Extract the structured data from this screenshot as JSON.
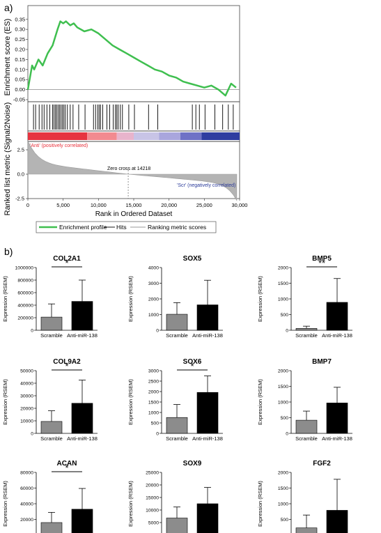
{
  "panel_a": {
    "label": "a)",
    "es_ylabel": "Enrichment score (ES)",
    "metric_ylabel": "Ranked list metric (Signal2Noise)",
    "xlabel": "Rank in Ordered Dataset",
    "pos_label": "'Anti' (positively correlated)",
    "neg_label": "'Scr' (negatively correlated)",
    "zero_cross_label": "Zero cross at 14218",
    "legend": [
      "Enrichment profile",
      "Hits",
      "Ranking metric scores"
    ],
    "colors": {
      "profile": "#3fbf4f",
      "pos": "#e8303a",
      "neg": "#2a3a9a",
      "metric": "#9a9a9a"
    }
  },
  "panel_b": {
    "label": "b)"
  },
  "chart_data": [
    {
      "type": "line",
      "title": "",
      "xlabel": "Rank in Ordered Dataset",
      "ylabel": "Enrichment score (ES)",
      "xlim": [
        0,
        30000
      ],
      "ylim": [
        -0.05,
        0.37
      ],
      "x_ticks": [
        "0",
        "5,000",
        "10,000",
        "15,000",
        "20,000",
        "25,000",
        "30,000"
      ],
      "y_ticks": [
        "0.35",
        "0.30",
        "0.25",
        "0.20",
        "0.15",
        "0.10",
        "0.05",
        "0.00",
        "-0.05"
      ],
      "series": [
        {
          "name": "Enrichment profile",
          "x": [
            0,
            300,
            600,
            900,
            1500,
            2100,
            2800,
            3500,
            4200,
            4600,
            5000,
            5400,
            6000,
            6500,
            7000,
            8000,
            9000,
            10000,
            11000,
            12000,
            13000,
            14000,
            15000,
            16000,
            17000,
            18000,
            19000,
            20000,
            21000,
            22000,
            23000,
            24000,
            25000,
            26000,
            27000,
            28000,
            28800,
            29500
          ],
          "y": [
            0.0,
            0.06,
            0.12,
            0.1,
            0.15,
            0.12,
            0.18,
            0.22,
            0.3,
            0.34,
            0.33,
            0.34,
            0.32,
            0.33,
            0.31,
            0.29,
            0.3,
            0.28,
            0.25,
            0.22,
            0.2,
            0.18,
            0.16,
            0.14,
            0.12,
            0.1,
            0.09,
            0.07,
            0.06,
            0.04,
            0.03,
            0.02,
            0.01,
            0.02,
            0.0,
            -0.03,
            0.03,
            0.01
          ]
        }
      ],
      "hits": [
        800,
        1100,
        1600,
        2000,
        2300,
        2700,
        3100,
        3500,
        3700,
        3900,
        4100,
        4300,
        4500,
        4700,
        4900,
        5100,
        5300,
        5600,
        6000,
        6400,
        7200,
        8100,
        9300,
        9600,
        9900,
        10100,
        10300,
        10600,
        11200,
        11600,
        12100,
        12400,
        12600,
        12800,
        13100,
        13400,
        14300,
        15100,
        17100,
        18400,
        23300,
        23800,
        24300,
        25100,
        26500,
        27600,
        28400,
        29100
      ],
      "metric_ticks": [
        "2.5",
        "0.0",
        "-2.5"
      ],
      "zero_cross": 14218
    },
    {
      "type": "bar",
      "title": "COL2A1",
      "ylabel": "Expression (RSEM)",
      "categories": [
        "Scramble",
        "Anti-miR-138"
      ],
      "values": [
        210000,
        460000
      ],
      "errors": [
        210000,
        340000
      ],
      "ylim": [
        0,
        1000000
      ],
      "y_ticks": [
        "0",
        "200000",
        "400000",
        "600000",
        "800000",
        "1000000"
      ],
      "significance": "*"
    },
    {
      "type": "bar",
      "title": "SOX5",
      "ylabel": "Expression (RSEM)",
      "categories": [
        "Scramble",
        "Anti-miR-138"
      ],
      "values": [
        1020,
        1620
      ],
      "errors": [
        740,
        1570
      ],
      "ylim": [
        0,
        4000
      ],
      "y_ticks": [
        "0",
        "1000",
        "2000",
        "3000",
        "4000"
      ],
      "significance": ""
    },
    {
      "type": "bar",
      "title": "BMP5",
      "ylabel": "Expression (RSEM)",
      "categories": [
        "Scramble",
        "Anti-miR-138"
      ],
      "values": [
        60,
        890
      ],
      "errors": [
        70,
        760
      ],
      "ylim": [
        0,
        2000
      ],
      "y_ticks": [
        "0",
        "500",
        "1000",
        "1500",
        "2000"
      ],
      "significance": "**"
    },
    {
      "type": "bar",
      "title": "COL9A2",
      "ylabel": "Expression (RSEM)",
      "categories": [
        "Scramble",
        "Anti-miR-138"
      ],
      "values": [
        9500,
        24000
      ],
      "errors": [
        8500,
        18500
      ],
      "ylim": [
        0,
        50000
      ],
      "y_ticks": [
        "0",
        "10000",
        "20000",
        "30000",
        "40000",
        "50000"
      ],
      "significance": "*"
    },
    {
      "type": "bar",
      "title": "SOX6",
      "ylabel": "Expression (RSEM)",
      "categories": [
        "Scramble",
        "Anti-miR-138"
      ],
      "values": [
        760,
        1960
      ],
      "errors": [
        620,
        790
      ],
      "ylim": [
        0,
        3000
      ],
      "y_ticks": [
        "0",
        "500",
        "1000",
        "1500",
        "2000",
        "2500",
        "3000"
      ],
      "significance": "*"
    },
    {
      "type": "bar",
      "title": "BMP7",
      "ylabel": "Expression (RSEM)",
      "categories": [
        "Scramble",
        "Anti-miR-138"
      ],
      "values": [
        420,
        970
      ],
      "errors": [
        290,
        500
      ],
      "ylim": [
        0,
        2000
      ],
      "y_ticks": [
        "0",
        "500",
        "1000",
        "1500",
        "2000"
      ],
      "significance": ""
    },
    {
      "type": "bar",
      "title": "ACAN",
      "ylabel": "Expression (RSEM)",
      "categories": [
        "Scramble",
        "Anti-miR-138"
      ],
      "values": [
        16000,
        33000
      ],
      "errors": [
        13000,
        26500
      ],
      "ylim": [
        0,
        80000
      ],
      "y_ticks": [
        "0",
        "20000",
        "40000",
        "60000",
        "80000"
      ],
      "significance": "*"
    },
    {
      "type": "bar",
      "title": "SOX9",
      "ylabel": "Expression (RSEM)",
      "categories": [
        "Scramble",
        "Anti-miR-138"
      ],
      "values": [
        6800,
        12500
      ],
      "errors": [
        4400,
        6500
      ],
      "ylim": [
        0,
        25000
      ],
      "y_ticks": [
        "0",
        "5000",
        "10000",
        "15000",
        "20000",
        "25000"
      ],
      "significance": ""
    },
    {
      "type": "bar",
      "title": "FGF2",
      "ylabel": "Expression (RSEM)",
      "categories": [
        "Scramble",
        "Anti-miR-138"
      ],
      "values": [
        230,
        790
      ],
      "errors": [
        410,
        990
      ],
      "ylim": [
        0,
        2000
      ],
      "y_ticks": [
        "0",
        "500",
        "1000",
        "1500",
        "2000"
      ],
      "significance": ""
    }
  ]
}
